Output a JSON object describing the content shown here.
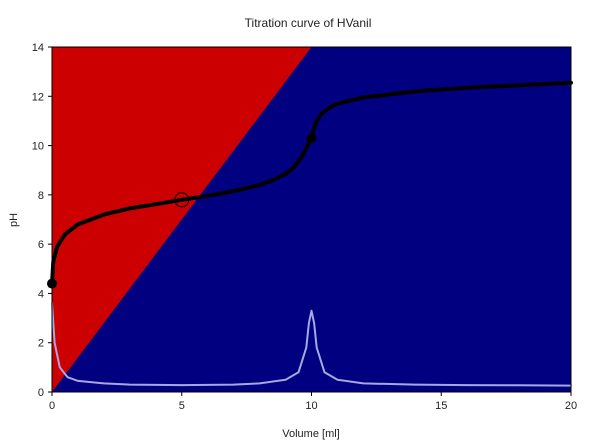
{
  "chart_data": {
    "type": "line",
    "title": "Titration curve of HVanil",
    "xlabel": "Volume [ml]",
    "ylabel": "pH",
    "xlim": [
      0,
      20
    ],
    "ylim": [
      0,
      14
    ],
    "x_ticks": [
      0,
      5,
      10,
      15,
      20
    ],
    "y_ticks": [
      0,
      2,
      4,
      6,
      8,
      10,
      12,
      14
    ],
    "grid": false,
    "legend": "none",
    "background_regions": {
      "red_color": "#cc0000",
      "blue_color": "#000080",
      "boundary_line": [
        [
          0,
          0
        ],
        [
          10,
          14
        ]
      ]
    },
    "series": [
      {
        "color": "#000000",
        "x": [
          0,
          0.05,
          0.2,
          0.5,
          1,
          2,
          3,
          4,
          5,
          6,
          7,
          8,
          8.5,
          9,
          9.3,
          9.6,
          9.8,
          9.9,
          10,
          10.1,
          10.2,
          10.4,
          10.7,
          11,
          12,
          14,
          16,
          18,
          20
        ],
        "y": [
          4.4,
          5.3,
          5.9,
          6.4,
          6.8,
          7.2,
          7.45,
          7.62,
          7.8,
          7.96,
          8.15,
          8.4,
          8.6,
          8.85,
          9.1,
          9.5,
          9.9,
          10.1,
          10.35,
          10.7,
          11.0,
          11.3,
          11.55,
          11.7,
          11.95,
          12.2,
          12.35,
          12.45,
          12.55
        ]
      },
      {
        "color": "#a6a8e0",
        "x": [
          0,
          0.1,
          0.3,
          0.6,
          1,
          2,
          3,
          5,
          7,
          8,
          9,
          9.5,
          9.8,
          9.9,
          10,
          10.1,
          10.2,
          10.5,
          11,
          12,
          14,
          16,
          18,
          20
        ],
        "y": [
          3.6,
          2.0,
          1.0,
          0.6,
          0.45,
          0.35,
          0.3,
          0.28,
          0.3,
          0.35,
          0.5,
          0.8,
          1.8,
          2.8,
          3.3,
          2.8,
          1.8,
          0.8,
          0.5,
          0.35,
          0.3,
          0.28,
          0.27,
          0.26
        ]
      }
    ],
    "markers": [
      {
        "x": 0,
        "y": 4.4,
        "style": "filled",
        "color": "#000000"
      },
      {
        "x": 5,
        "y": 7.8,
        "style": "open",
        "color": "#000000"
      },
      {
        "x": 10,
        "y": 10.3,
        "style": "filled",
        "color": "#000000"
      }
    ]
  }
}
